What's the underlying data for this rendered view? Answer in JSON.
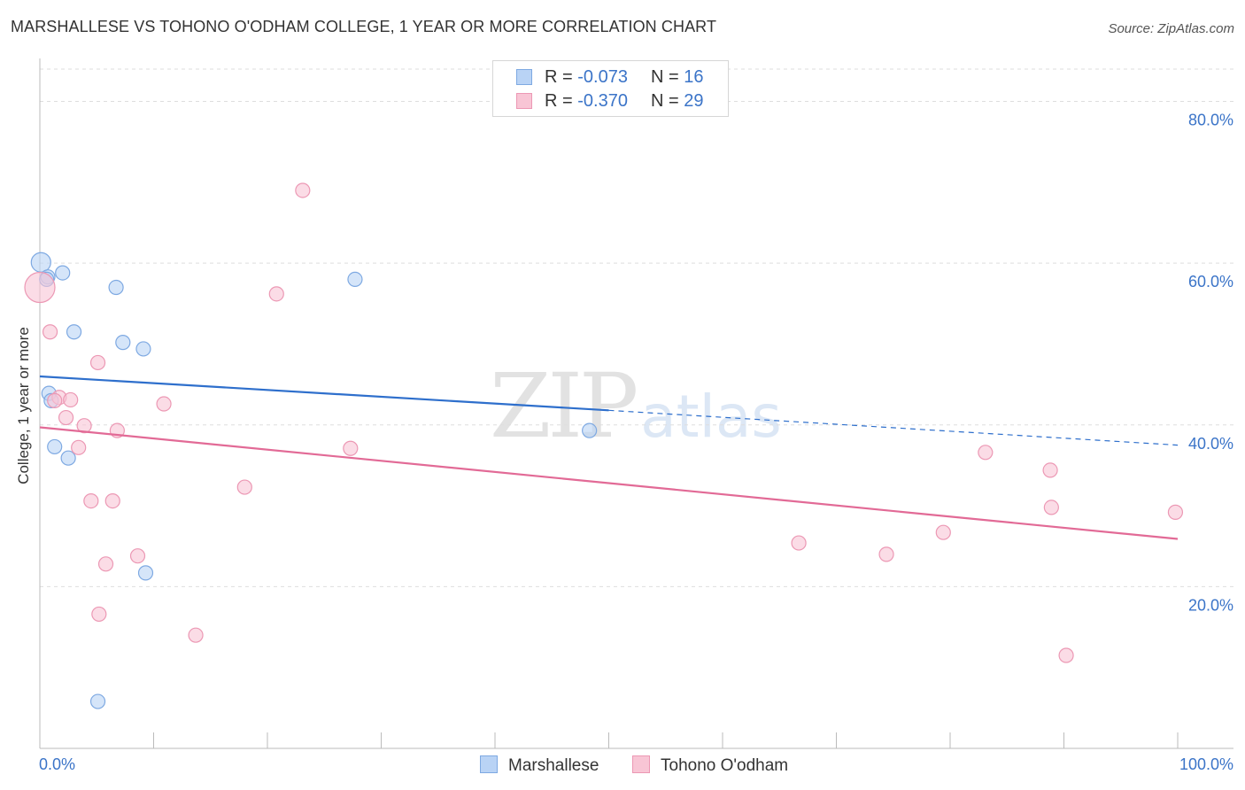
{
  "header": {
    "title": "MARSHALLESE VS TOHONO O'ODHAM COLLEGE, 1 YEAR OR MORE CORRELATION CHART",
    "source": "Source: ZipAtlas.com"
  },
  "watermark": {
    "zip": "ZIP",
    "atlas": "atlas"
  },
  "colors": {
    "marshallese_fill": "#b9d3f5",
    "marshallese_stroke": "#7ea9e2",
    "marshallese_line": "#2e6fcc",
    "tohono_fill": "#f8c5d5",
    "tohono_stroke": "#ec98b4",
    "tohono_line": "#e26a96",
    "tick_label": "#3b74c8",
    "grid": "#dedede"
  },
  "stats": [
    {
      "r_label": "R =",
      "r_value": "-0.073",
      "n_label": "N =",
      "n_value": "16"
    },
    {
      "r_label": "R =",
      "r_value": "-0.370",
      "n_label": "N =",
      "n_value": "29"
    }
  ],
  "legend": [
    "Marshallese",
    "Tohono O'odham"
  ],
  "chart_data": {
    "type": "scatter",
    "title": "MARSHALLESE VS TOHONO O'ODHAM COLLEGE, 1 YEAR OR MORE CORRELATION CHART",
    "xlabel": "",
    "ylabel": "College, 1 year or more",
    "xlim": [
      0,
      100
    ],
    "ylim": [
      0,
      84
    ],
    "x_tick_labels": [
      "0.0%",
      "100.0%"
    ],
    "y_ticks": [
      20,
      40,
      60,
      80
    ],
    "y_tick_labels": [
      "20.0%",
      "40.0%",
      "60.0%",
      "80.0%"
    ],
    "series": [
      {
        "name": "Marshallese",
        "points": [
          {
            "x": 0.1,
            "y": 60.1
          },
          {
            "x": 0.7,
            "y": 58.3
          },
          {
            "x": 0.6,
            "y": 58.0
          },
          {
            "x": 2.0,
            "y": 58.8
          },
          {
            "x": 6.7,
            "y": 57.0
          },
          {
            "x": 27.7,
            "y": 58.0
          },
          {
            "x": 3.0,
            "y": 51.5
          },
          {
            "x": 7.3,
            "y": 50.2
          },
          {
            "x": 9.1,
            "y": 49.4
          },
          {
            "x": 0.8,
            "y": 43.9
          },
          {
            "x": 1.3,
            "y": 37.3
          },
          {
            "x": 2.5,
            "y": 35.9
          },
          {
            "x": 48.3,
            "y": 39.3
          },
          {
            "x": 9.3,
            "y": 21.7
          },
          {
            "x": 5.1,
            "y": 5.8
          },
          {
            "x": 1.0,
            "y": 43.0
          }
        ],
        "trend": {
          "x0": 0,
          "y0": 46.0,
          "x1": 50,
          "y1": 41.8,
          "extend_to_x": 100,
          "extend_to_y": 37.5
        }
      },
      {
        "name": "Tohono O'odham",
        "points": [
          {
            "x": 0.0,
            "y": 57.0
          },
          {
            "x": 23.1,
            "y": 69.0
          },
          {
            "x": 20.8,
            "y": 56.2
          },
          {
            "x": 0.9,
            "y": 51.5
          },
          {
            "x": 5.1,
            "y": 47.7
          },
          {
            "x": 1.7,
            "y": 43.4
          },
          {
            "x": 2.7,
            "y": 43.1
          },
          {
            "x": 10.9,
            "y": 42.6
          },
          {
            "x": 2.3,
            "y": 40.9
          },
          {
            "x": 3.9,
            "y": 39.9
          },
          {
            "x": 6.8,
            "y": 39.3
          },
          {
            "x": 3.4,
            "y": 37.2
          },
          {
            "x": 27.3,
            "y": 37.1
          },
          {
            "x": 18.0,
            "y": 32.3
          },
          {
            "x": 4.5,
            "y": 30.6
          },
          {
            "x": 6.4,
            "y": 30.6
          },
          {
            "x": 8.6,
            "y": 23.8
          },
          {
            "x": 5.8,
            "y": 22.8
          },
          {
            "x": 5.2,
            "y": 16.6
          },
          {
            "x": 13.7,
            "y": 14.0
          },
          {
            "x": 83.1,
            "y": 36.6
          },
          {
            "x": 88.8,
            "y": 34.4
          },
          {
            "x": 88.9,
            "y": 29.8
          },
          {
            "x": 99.8,
            "y": 29.2
          },
          {
            "x": 79.4,
            "y": 26.7
          },
          {
            "x": 66.7,
            "y": 25.4
          },
          {
            "x": 74.4,
            "y": 24.0
          },
          {
            "x": 90.2,
            "y": 11.5
          },
          {
            "x": 1.3,
            "y": 43.0
          }
        ],
        "trend": {
          "x0": 0,
          "y0": 39.7,
          "x1": 100,
          "y1": 25.9
        }
      }
    ]
  }
}
